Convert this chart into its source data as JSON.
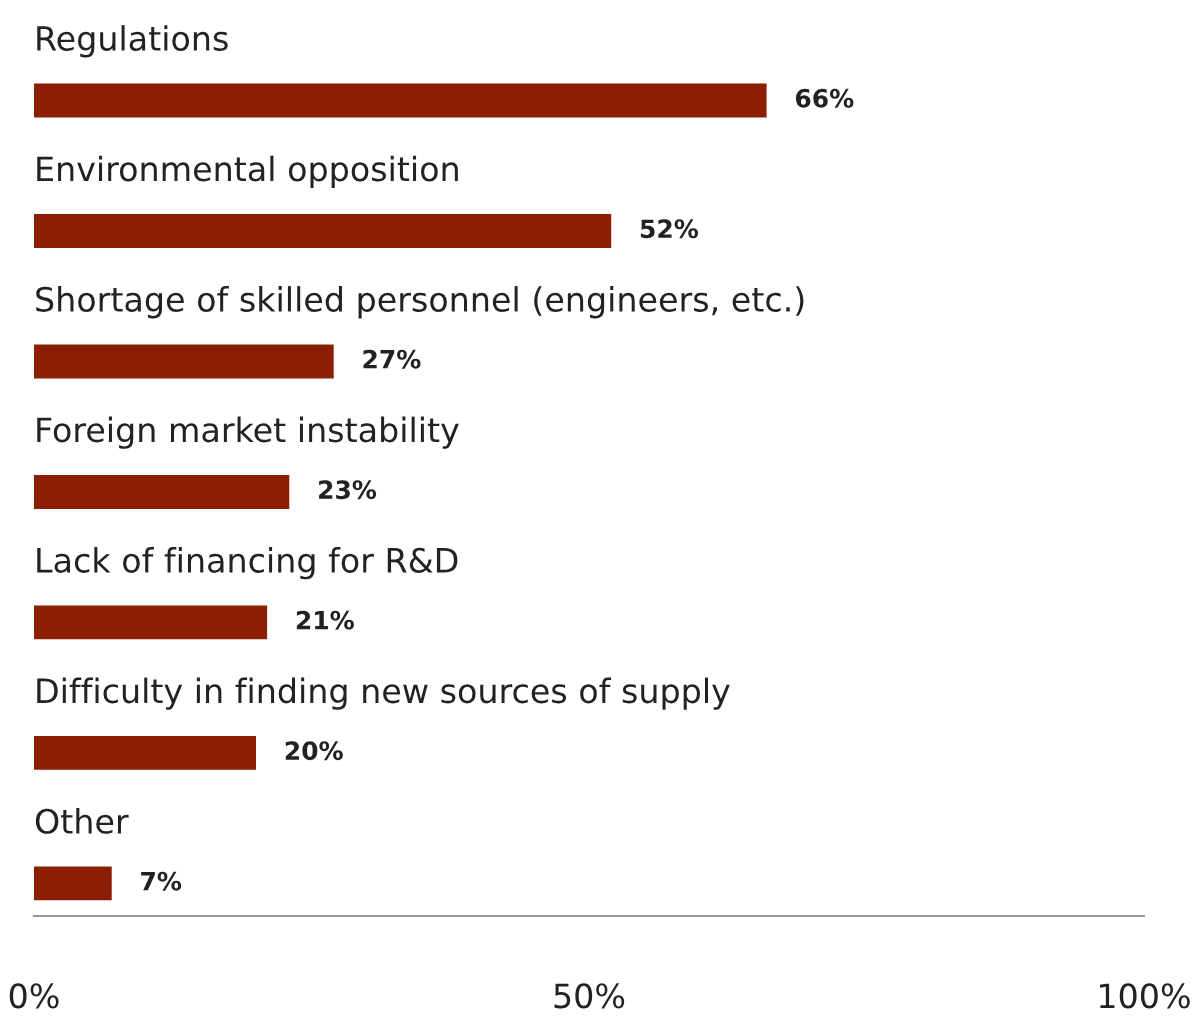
{
  "chart_data": {
    "type": "bar",
    "orientation": "horizontal",
    "categories": [
      "Regulations",
      "Environmental opposition",
      "Shortage of skilled personnel (engineers, etc.)",
      "Foreign market instability",
      "Lack of financing for R&D",
      "Difficulty in finding new sources of supply",
      "Other"
    ],
    "values": [
      66,
      52,
      27,
      23,
      21,
      20,
      7
    ],
    "value_labels": [
      "66%",
      "52%",
      "27%",
      "23%",
      "21%",
      "20%",
      "7%"
    ],
    "color": "#8b1e03",
    "xlim": [
      0,
      100
    ],
    "xticks": [
      {
        "value": 0,
        "label": "0%"
      },
      {
        "value": 50,
        "label": "50%"
      },
      {
        "value": 100,
        "label": "100%"
      }
    ],
    "grid": false,
    "legend": false
  }
}
